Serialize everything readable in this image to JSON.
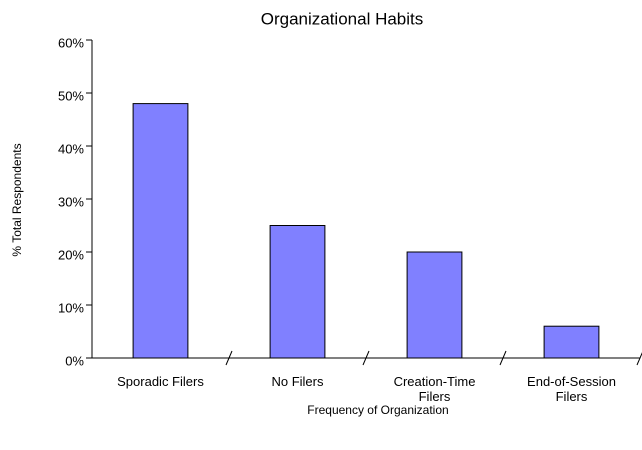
{
  "chart_data": {
    "type": "bar",
    "title": "Organizational Habits",
    "x_label": "Frequency of Organization",
    "y_label": "% Total Respondents",
    "categories": [
      "Sporadic Filers",
      "No Filers",
      "Creation-Time Filers",
      "End-of-Session Filers"
    ],
    "values": [
      48,
      25,
      20,
      6
    ],
    "color": "#8080ff",
    "ylim": [
      0,
      60
    ],
    "yticks": [
      {
        "value": 0,
        "label": "0%"
      },
      {
        "value": 10,
        "label": "10%"
      },
      {
        "value": 20,
        "label": "20%"
      },
      {
        "value": 30,
        "label": "30%"
      },
      {
        "value": 40,
        "label": "40%"
      },
      {
        "value": 50,
        "label": "50%"
      },
      {
        "value": 60,
        "label": "60%"
      }
    ],
    "grid": false
  }
}
